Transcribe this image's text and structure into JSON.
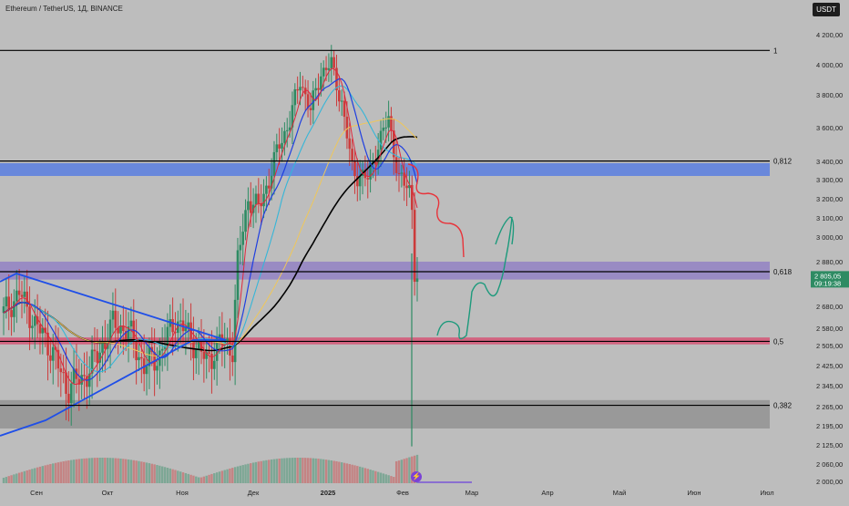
{
  "header": {
    "title": "Ethereum / TetherUS, 1Д, BINANCE",
    "currency": "USDT"
  },
  "colors": {
    "background": "#bdbdbd",
    "up": "#2e8b63",
    "down": "#cc3b3b",
    "zone_blue": "#5a7fe0",
    "zone_purple": "#8e7bc6",
    "zone_red": "#d9476c",
    "zone_gray": "#8a8a8a",
    "ma_black": "#000000",
    "ma_blue": "#1f3fe0",
    "ma_cyan": "#36b6d8",
    "ma_red": "#e0283c",
    "ma_yellow": "#efc75a",
    "ma_orange": "#f0a030",
    "forecast_red": "#e8333a",
    "forecast_green": "#1d9a7c"
  },
  "chart_data": {
    "type": "candlestick",
    "title": "Ethereum / TetherUS, 1Д, BINANCE",
    "ylim": [
      2000,
      4300
    ],
    "price_axis_ticks": [
      "4 200,00",
      "4 000,00",
      "3 800,00",
      "3 600,00",
      "3 400,00",
      "3 300,00",
      "3 200,00",
      "3 100,00",
      "3 000,00",
      "2 880,00",
      "2 680,00",
      "2 580,00",
      "2 505,00",
      "2 425,00",
      "2 345,00",
      "2 265,00",
      "2 195,00",
      "2 125,00",
      "2 060,00",
      "2 000,00"
    ],
    "time_axis_labels": [
      "Сен",
      "Окт",
      "Ноя",
      "Дек",
      "2025",
      "Фев",
      "Мар",
      "Апр",
      "Май",
      "Июн",
      "Июл"
    ],
    "fib_levels": [
      {
        "label": "1",
        "price": 4095
      },
      {
        "label": "0,812",
        "price": 3402
      },
      {
        "label": "0,618",
        "price": 2835
      },
      {
        "label": "0,5",
        "price": 2523
      },
      {
        "label": "0,382",
        "price": 2270
      }
    ],
    "zones": [
      {
        "name": "blue",
        "top": 3390,
        "bottom": 3320
      },
      {
        "name": "purple",
        "top": 2880,
        "bottom": 2800
      },
      {
        "name": "red",
        "top": 2540,
        "bottom": 2510
      },
      {
        "name": "gray",
        "top": 2290,
        "bottom": 2185
      }
    ],
    "last_price": "2 805,05",
    "countdown": "09:19:38",
    "series_count": 160
  }
}
